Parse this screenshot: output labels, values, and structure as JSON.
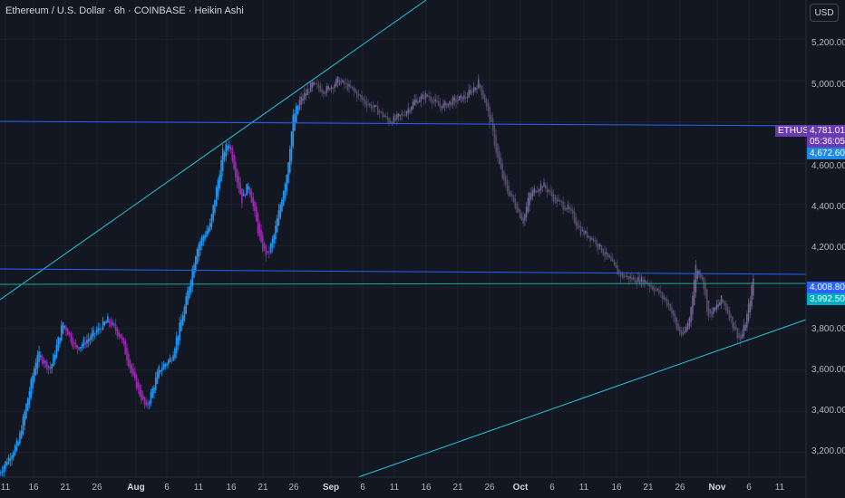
{
  "header": {
    "title": "Ethereum / U.S. Dollar · 6h · COINBASE · Heikin Ashi"
  },
  "currency_button": "USD",
  "y_axis": {
    "labels": [
      "5,200.00",
      "5,000.00",
      "4,600.00",
      "4,400.00",
      "4,200.00",
      "3,800.00",
      "3,600.00",
      "3,400.00",
      "3,200.00"
    ]
  },
  "x_axis": {
    "labels": [
      "11",
      "16",
      "21",
      "26",
      "Aug",
      "6",
      "11",
      "16",
      "21",
      "26",
      "Sep",
      "6",
      "11",
      "16",
      "21",
      "26",
      "Oct",
      "6",
      "11",
      "16",
      "21",
      "26",
      "Nov",
      "6",
      "11"
    ]
  },
  "price_tags": {
    "symbol": "ETHUSD",
    "last": "4,781.01",
    "countdown": "05:36:05",
    "line1": "4,672.60",
    "level_blue": "4,008.80",
    "level_cyan": "3,992.50"
  },
  "colors": {
    "background": "#131722",
    "up": "#2196f3",
    "down": "#9c27b0",
    "future_candle": "#9598a1",
    "trendline": "#26c6da",
    "hline_blue": "#2962ff",
    "hline_cyan": "#00bcd4",
    "last_price_tag": "#6a3bb0"
  },
  "chart_data": {
    "type": "candlestick",
    "title": "Ethereum / U.S. Dollar · 6h · COINBASE · Heikin Ashi",
    "ylim": [
      3080,
      5390
    ],
    "y_ticks": [
      3200,
      3400,
      3600,
      3800,
      4000,
      4200,
      4400,
      4600,
      4800,
      5000,
      5200
    ],
    "x_ticks": [
      "11",
      "16",
      "21",
      "26",
      "Aug",
      "6",
      "11",
      "16",
      "21",
      "26",
      "Sep",
      "6",
      "11",
      "16",
      "21",
      "26",
      "Oct",
      "6",
      "11",
      "16",
      "21",
      "26",
      "Nov",
      "6",
      "11"
    ],
    "close_path": [
      {
        "d": 0,
        "p": 3100
      },
      {
        "d": 3,
        "p": 3250
      },
      {
        "d": 6,
        "p": 3680
      },
      {
        "d": 8,
        "p": 3600
      },
      {
        "d": 10,
        "p": 3830
      },
      {
        "d": 12,
        "p": 3700
      },
      {
        "d": 14,
        "p": 3750
      },
      {
        "d": 17,
        "p": 3840
      },
      {
        "d": 19,
        "p": 3760
      },
      {
        "d": 21,
        "p": 3560
      },
      {
        "d": 23,
        "p": 3410
      },
      {
        "d": 25,
        "p": 3600
      },
      {
        "d": 27,
        "p": 3660
      },
      {
        "d": 29,
        "p": 3900
      },
      {
        "d": 31,
        "p": 4200
      },
      {
        "d": 33,
        "p": 4300
      },
      {
        "d": 35,
        "p": 4650
      },
      {
        "d": 36,
        "p": 4700
      },
      {
        "d": 37,
        "p": 4550
      },
      {
        "d": 38,
        "p": 4420
      },
      {
        "d": 39,
        "p": 4500
      },
      {
        "d": 40,
        "p": 4350
      },
      {
        "d": 41,
        "p": 4200
      },
      {
        "d": 42,
        "p": 4150
      },
      {
        "d": 43,
        "p": 4250
      },
      {
        "d": 44,
        "p": 4400
      },
      {
        "d": 45,
        "p": 4550
      },
      {
        "d": 46,
        "p": 4820
      },
      {
        "d": 47,
        "p": 4900
      },
      {
        "d": 49,
        "p": 4980
      },
      {
        "d": 51,
        "p": 4950
      },
      {
        "d": 53,
        "p": 5000
      },
      {
        "d": 55,
        "p": 4960
      },
      {
        "d": 57,
        "p": 4900
      },
      {
        "d": 59,
        "p": 4860
      },
      {
        "d": 61,
        "p": 4800
      },
      {
        "d": 63,
        "p": 4830
      },
      {
        "d": 65,
        "p": 4900
      },
      {
        "d": 67,
        "p": 4930
      },
      {
        "d": 69,
        "p": 4870
      },
      {
        "d": 71,
        "p": 4900
      },
      {
        "d": 73,
        "p": 4920
      },
      {
        "d": 75,
        "p": 4990
      },
      {
        "d": 76,
        "p": 4900
      },
      {
        "d": 77,
        "p": 4780
      },
      {
        "d": 78,
        "p": 4620
      },
      {
        "d": 79,
        "p": 4500
      },
      {
        "d": 81,
        "p": 4380
      },
      {
        "d": 82,
        "p": 4320
      },
      {
        "d": 83,
        "p": 4450
      },
      {
        "d": 85,
        "p": 4500
      },
      {
        "d": 87,
        "p": 4420
      },
      {
        "d": 89,
        "p": 4380
      },
      {
        "d": 91,
        "p": 4270
      },
      {
        "d": 93,
        "p": 4230
      },
      {
        "d": 95,
        "p": 4150
      },
      {
        "d": 97,
        "p": 4060
      },
      {
        "d": 99,
        "p": 4040
      },
      {
        "d": 101,
        "p": 4030
      },
      {
        "d": 103,
        "p": 3980
      },
      {
        "d": 105,
        "p": 3900
      },
      {
        "d": 106,
        "p": 3800
      },
      {
        "d": 107,
        "p": 3760
      },
      {
        "d": 108,
        "p": 3850
      },
      {
        "d": 109,
        "p": 4100
      },
      {
        "d": 110,
        "p": 4050
      },
      {
        "d": 111,
        "p": 3850
      },
      {
        "d": 113,
        "p": 3940
      },
      {
        "d": 114,
        "p": 3880
      },
      {
        "d": 115,
        "p": 3800
      },
      {
        "d": 116,
        "p": 3740
      },
      {
        "d": 117,
        "p": 3860
      },
      {
        "d": 118,
        "p": 4040
      }
    ]
  }
}
